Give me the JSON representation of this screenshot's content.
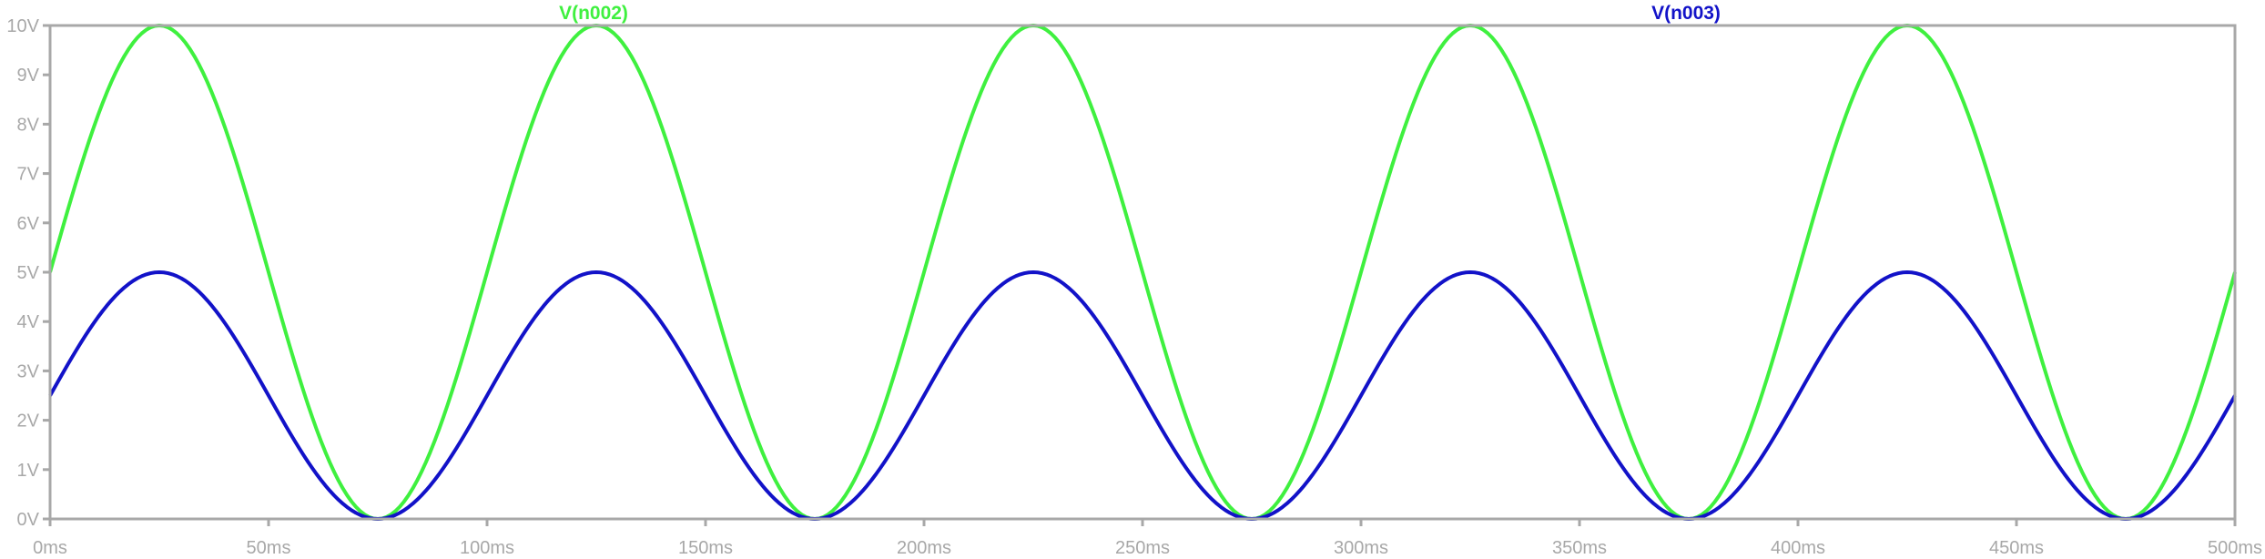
{
  "chart_data": {
    "type": "line",
    "x_unit": "ms",
    "y_unit": "V",
    "xlim": [
      0,
      500
    ],
    "ylim": [
      0,
      10
    ],
    "x_ticks": [
      0,
      50,
      100,
      150,
      200,
      250,
      300,
      350,
      400,
      450,
      500
    ],
    "y_ticks": [
      0,
      1,
      2,
      3,
      4,
      5,
      6,
      7,
      8,
      9,
      10
    ],
    "x_tick_labels": [
      "0ms",
      "50ms",
      "100ms",
      "150ms",
      "200ms",
      "250ms",
      "300ms",
      "350ms",
      "400ms",
      "450ms",
      "500ms"
    ],
    "y_tick_labels": [
      "0V",
      "1V",
      "2V",
      "3V",
      "4V",
      "5V",
      "6V",
      "7V",
      "8V",
      "9V",
      "10V"
    ],
    "grid": false,
    "frame_color": "#a8a8a8",
    "tick_label_color": "#a8a8a8",
    "sample_step_ms": 1,
    "series": [
      {
        "name": "V(n002)",
        "color": "#3ff03f",
        "shape": "sine",
        "offset_v": 5,
        "amplitude_v": 5,
        "frequency_hz": 10,
        "phase_deg": 0
      },
      {
        "name": "V(n003)",
        "color": "#1212c8",
        "shape": "sine",
        "offset_v": 2.5,
        "amplitude_v": 2.5,
        "frequency_hz": 10,
        "phase_deg": 0
      }
    ]
  }
}
